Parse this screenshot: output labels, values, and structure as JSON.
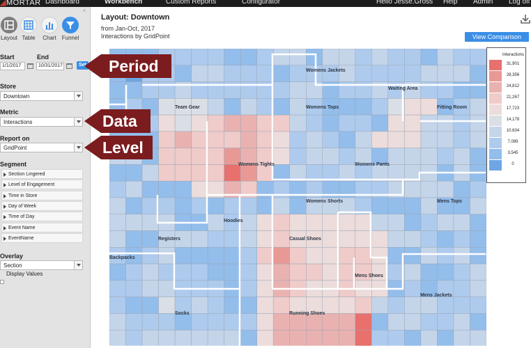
{
  "nav": {
    "logo": "MORTAR",
    "dashboard": "Dashboard",
    "workbench": "Workbench",
    "custom_reports": "Custom Reports",
    "configurator": "Configurator",
    "user": "Hello Jesse.Gross",
    "help": "Help",
    "admin": "Admin",
    "logout": "Log off"
  },
  "sidebar": {
    "tools": [
      {
        "label": "Layout",
        "icon": "layout-icon"
      },
      {
        "label": "Table",
        "icon": "table-icon"
      },
      {
        "label": "Chart",
        "icon": "chart-icon"
      },
      {
        "label": "Funnel",
        "icon": "funnel-icon"
      }
    ],
    "start_label": "Start",
    "end_label": "End",
    "start_value": "1/1/2017",
    "end_value": "10/31/2017",
    "set_label": "Set",
    "store_label": "Store",
    "store_value": "Downtown",
    "metric_label": "Metric",
    "metric_value": "Interactions",
    "report_label": "Report on",
    "report_value": "GridPoint",
    "segment_label": "Segment",
    "segments": [
      "Section Lingered",
      "Level of Engagement",
      "Time in Store",
      "Day of Week",
      "Time of Day",
      "Event Name",
      "EventName"
    ],
    "overlay_label": "Overlay",
    "overlay_value": "Section",
    "display_values": "Display Values"
  },
  "main": {
    "title": "Layout: Downtown",
    "date_range": "from Jan-Oct, 2017",
    "subtitle": "Interactions by GridPoint",
    "view_comparison": "View Comparison"
  },
  "legend": {
    "title": "Interactions",
    "values": [
      "31,901",
      "28,356",
      "24,812",
      "21,267",
      "17,723",
      "14,178",
      "10,634",
      "7,089",
      "3,545",
      "0"
    ],
    "colors": [
      "#e8706d",
      "#e99995",
      "#e9b2b0",
      "#efcbc9",
      "#ecdcdb",
      "#dadfe6",
      "#c4d5ea",
      "#aecbee",
      "#93bdeb",
      "#6ea5e4"
    ]
  },
  "sections": [
    "Womens Jackets",
    "Waiting Area",
    "Team Gear",
    "Womens Tops",
    "Fitting Room",
    "Womens Tights",
    "Womens Pants",
    "Womens Shorts",
    "Mens Tops",
    "Hoodies",
    "Registers",
    "Casual Shoes",
    "Backpacks",
    "Mens Shoes",
    "Mens Jackets",
    "Socks",
    "Running Shoes"
  ],
  "annotations": {
    "period": "Period",
    "data": "Data",
    "level": "Level"
  }
}
